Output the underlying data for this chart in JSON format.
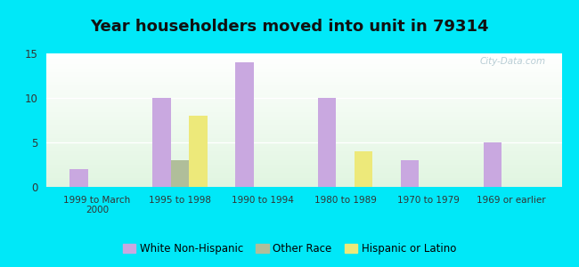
{
  "title": "Year householders moved into unit in 79314",
  "categories": [
    "1999 to March\n2000",
    "1995 to 1998",
    "1990 to 1994",
    "1980 to 1989",
    "1970 to 1979",
    "1969 or earlier"
  ],
  "series": {
    "White Non-Hispanic": [
      2,
      10,
      14,
      10,
      3,
      5
    ],
    "Other Race": [
      0,
      3,
      0,
      0,
      0,
      0
    ],
    "Hispanic or Latino": [
      0,
      8,
      0,
      4,
      0,
      0
    ]
  },
  "colors": {
    "White Non-Hispanic": "#c9a8e0",
    "Other Race": "#b0be9a",
    "Hispanic or Latino": "#ede97a"
  },
  "ylim": [
    0,
    15
  ],
  "yticks": [
    0,
    5,
    10,
    15
  ],
  "background_color": "#00e8f8",
  "title_fontsize": 13,
  "bar_width": 0.22,
  "legend_fontsize": 8.5,
  "watermark": "City-Data.com"
}
